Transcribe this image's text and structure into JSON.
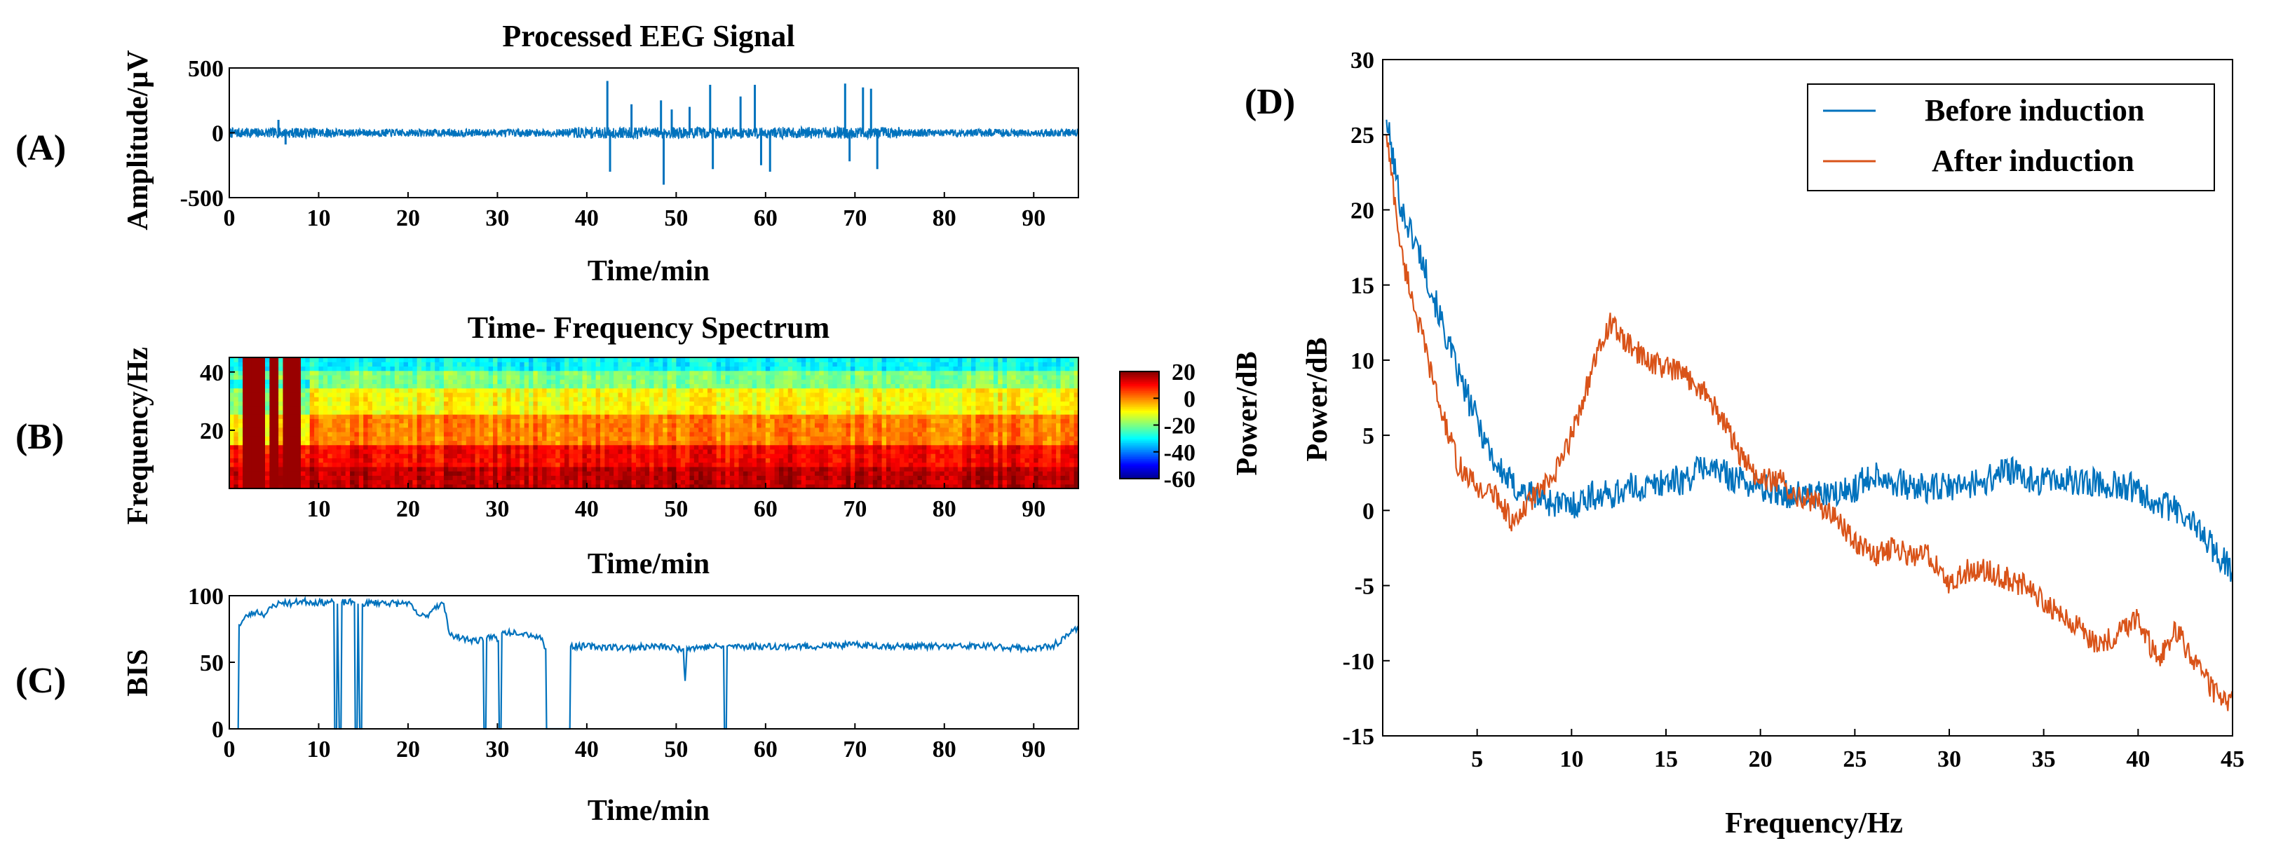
{
  "chart_data": [
    {
      "id": "A",
      "type": "line",
      "panel_label": "(A)",
      "title": "Processed EEG Signal",
      "xlabel": "Time/min",
      "ylabel": "Amplitude/μV",
      "xlim": [
        0,
        95
      ],
      "ylim": [
        -500,
        500
      ],
      "xticks": [
        "0",
        "10",
        "20",
        "30",
        "40",
        "50",
        "60",
        "70",
        "80",
        "90"
      ],
      "yticks": [
        "500",
        "0",
        "-500"
      ],
      "color": "#0072BD",
      "baseline_amplitude_uv": 30,
      "spikes": [
        {
          "x": 5.5,
          "y": 100
        },
        {
          "x": 6.3,
          "y": -90
        },
        {
          "x": 42.3,
          "y": 400
        },
        {
          "x": 42.6,
          "y": -300
        },
        {
          "x": 45.0,
          "y": 220
        },
        {
          "x": 48.3,
          "y": 250
        },
        {
          "x": 48.6,
          "y": -400
        },
        {
          "x": 49.5,
          "y": 180
        },
        {
          "x": 51.5,
          "y": 200
        },
        {
          "x": 53.8,
          "y": 370
        },
        {
          "x": 54.1,
          "y": -280
        },
        {
          "x": 57.2,
          "y": 280
        },
        {
          "x": 58.8,
          "y": 370
        },
        {
          "x": 59.5,
          "y": -250
        },
        {
          "x": 60.5,
          "y": -300
        },
        {
          "x": 68.9,
          "y": 380
        },
        {
          "x": 69.4,
          "y": -220
        },
        {
          "x": 70.9,
          "y": 350
        },
        {
          "x": 71.8,
          "y": 340
        },
        {
          "x": 72.5,
          "y": -280
        }
      ]
    },
    {
      "id": "B",
      "type": "heatmap",
      "panel_label": "(B)",
      "title": "Time- Frequency Spectrum",
      "xlabel": "Time/min",
      "ylabel": "Frequency/Hz",
      "xlim": [
        0,
        95
      ],
      "ylim": [
        0,
        45
      ],
      "xticks": [
        "10",
        "20",
        "30",
        "40",
        "50",
        "60",
        "70",
        "80",
        "90"
      ],
      "yticks": [
        "40",
        "20"
      ],
      "colorbar": {
        "label": "Power/dB",
        "range": [
          -60,
          20
        ],
        "ticks": [
          "20",
          "0",
          "-20",
          "-40",
          "-60"
        ]
      },
      "colormap": [
        "#00008F",
        "#0000FF",
        "#0080FF",
        "#00FFFF",
        "#80FF80",
        "#FFFF00",
        "#FF8000",
        "#FF0000",
        "#800000"
      ],
      "power_bands_db": [
        {
          "freq_range_hz": [
            0,
            8
          ],
          "value_db": 15
        },
        {
          "freq_range_hz": [
            8,
            15
          ],
          "value_db": 10
        },
        {
          "freq_range_hz": [
            15,
            25
          ],
          "value_db": 0
        },
        {
          "freq_range_hz": [
            25,
            35
          ],
          "value_db": -10
        },
        {
          "freq_range_hz": [
            35,
            40
          ],
          "value_db": -20
        },
        {
          "freq_range_hz": [
            40,
            45
          ],
          "value_db": -30
        }
      ],
      "artifact_times_min": [
        2,
        3,
        3.5,
        5,
        6.5,
        7.5
      ]
    },
    {
      "id": "C",
      "type": "line",
      "panel_label": "(C)",
      "title": "",
      "xlabel": "Time/min",
      "ylabel": "BIS",
      "xlim": [
        0,
        95
      ],
      "ylim": [
        0,
        100
      ],
      "xticks": [
        "0",
        "10",
        "20",
        "30",
        "40",
        "50",
        "60",
        "70",
        "80",
        "90"
      ],
      "yticks": [
        "100",
        "50",
        "0"
      ],
      "color": "#0072BD",
      "points": [
        [
          1.0,
          0
        ],
        [
          1.1,
          78
        ],
        [
          2,
          85
        ],
        [
          3,
          88
        ],
        [
          4,
          86
        ],
        [
          5,
          93
        ],
        [
          6,
          95
        ],
        [
          7,
          94
        ],
        [
          8,
          96
        ],
        [
          10,
          95
        ],
        [
          11.7,
          95
        ],
        [
          11.8,
          0
        ],
        [
          12.0,
          0
        ],
        [
          12.1,
          94
        ],
        [
          12.3,
          0
        ],
        [
          12.5,
          0
        ],
        [
          12.6,
          95
        ],
        [
          14.0,
          95
        ],
        [
          14.1,
          0
        ],
        [
          14.3,
          0
        ],
        [
          14.4,
          94
        ],
        [
          14.6,
          0
        ],
        [
          14.8,
          0
        ],
        [
          14.9,
          94
        ],
        [
          17,
          95
        ],
        [
          19,
          94
        ],
        [
          20,
          95
        ],
        [
          21,
          86
        ],
        [
          22,
          84
        ],
        [
          23,
          92
        ],
        [
          24,
          94
        ],
        [
          24.5,
          75
        ],
        [
          25,
          70
        ],
        [
          26,
          68
        ],
        [
          27,
          67
        ],
        [
          28.4,
          66
        ],
        [
          28.5,
          0
        ],
        [
          28.7,
          0
        ],
        [
          28.8,
          68
        ],
        [
          29.5,
          70
        ],
        [
          30.1,
          66
        ],
        [
          30.2,
          0
        ],
        [
          30.4,
          0
        ],
        [
          30.5,
          72
        ],
        [
          32,
          73
        ],
        [
          33,
          72
        ],
        [
          34,
          70
        ],
        [
          35,
          68
        ],
        [
          35.4,
          60
        ],
        [
          35.5,
          0
        ],
        [
          38.1,
          0
        ],
        [
          38.2,
          62
        ],
        [
          40,
          62
        ],
        [
          45,
          61
        ],
        [
          48,
          62
        ],
        [
          50.8,
          60
        ],
        [
          51.0,
          36
        ],
        [
          51.2,
          61
        ],
        [
          55.3,
          62
        ],
        [
          55.4,
          0
        ],
        [
          55.6,
          0
        ],
        [
          55.7,
          62
        ],
        [
          60,
          62
        ],
        [
          65,
          62
        ],
        [
          70,
          63
        ],
        [
          75,
          62
        ],
        [
          80,
          62
        ],
        [
          85,
          62
        ],
        [
          88,
          61
        ],
        [
          90,
          60
        ],
        [
          92,
          62
        ],
        [
          93.5,
          68
        ],
        [
          94.5,
          75
        ],
        [
          95,
          74
        ]
      ],
      "noise_amplitude": 2.5
    },
    {
      "id": "D",
      "type": "line",
      "panel_label": "(D)",
      "title": "",
      "xlabel": "Frequency/Hz",
      "ylabel": "Power/dB",
      "xlim": [
        0,
        45
      ],
      "ylim": [
        -15,
        30
      ],
      "xticks": [
        "5",
        "10",
        "15",
        "20",
        "25",
        "30",
        "35",
        "40",
        "45"
      ],
      "yticks": [
        "30",
        "25",
        "20",
        "15",
        "10",
        "5",
        "0",
        "-5",
        "-10",
        "-15"
      ],
      "legend": {
        "position": "top-right"
      },
      "series": [
        {
          "name": "Before induction",
          "color": "#0072BD",
          "noise_amplitude": 1.0,
          "points": [
            [
              0.2,
              26
            ],
            [
              1,
              20
            ],
            [
              2,
              17
            ],
            [
              3,
              13
            ],
            [
              4,
              9
            ],
            [
              5,
              6
            ],
            [
              6,
              3
            ],
            [
              7,
              1.5
            ],
            [
              8,
              1
            ],
            [
              9,
              0.5
            ],
            [
              10,
              0.3
            ],
            [
              11,
              1
            ],
            [
              12,
              1
            ],
            [
              13,
              1.5
            ],
            [
              14,
              1.5
            ],
            [
              15,
              2
            ],
            [
              16,
              2
            ],
            [
              17,
              3
            ],
            [
              18,
              2.5
            ],
            [
              19,
              2
            ],
            [
              20,
              1.5
            ],
            [
              22,
              1
            ],
            [
              24,
              1
            ],
            [
              25,
              1.5
            ],
            [
              26,
              2.5
            ],
            [
              28,
              1.5
            ],
            [
              30,
              1.5
            ],
            [
              32,
              2
            ],
            [
              33,
              2.8
            ],
            [
              34,
              2
            ],
            [
              36,
              2
            ],
            [
              38,
              1.8
            ],
            [
              40,
              1.5
            ],
            [
              41,
              0.5
            ],
            [
              42,
              0
            ],
            [
              43,
              -1
            ],
            [
              44,
              -2.5
            ],
            [
              45,
              -4
            ]
          ]
        },
        {
          "name": "After induction",
          "color": "#D95319",
          "noise_amplitude": 0.8,
          "points": [
            [
              0.2,
              25
            ],
            [
              1,
              17
            ],
            [
              2,
              12
            ],
            [
              3,
              7
            ],
            [
              4,
              3
            ],
            [
              5,
              1.5
            ],
            [
              6,
              1
            ],
            [
              7,
              -1
            ],
            [
              8,
              1
            ],
            [
              9,
              2
            ],
            [
              10,
              5
            ],
            [
              11,
              9
            ],
            [
              12,
              12.5
            ],
            [
              13,
              11
            ],
            [
              14,
              10
            ],
            [
              15,
              9.5
            ],
            [
              16,
              9
            ],
            [
              17,
              8
            ],
            [
              18,
              6
            ],
            [
              19,
              3.5
            ],
            [
              20,
              2
            ],
            [
              21,
              2
            ],
            [
              22,
              1
            ],
            [
              23,
              0.5
            ],
            [
              24,
              -0.5
            ],
            [
              25,
              -2
            ],
            [
              26,
              -3
            ],
            [
              27,
              -2.5
            ],
            [
              28,
              -3
            ],
            [
              29,
              -3
            ],
            [
              30,
              -5
            ],
            [
              31,
              -4
            ],
            [
              32,
              -4
            ],
            [
              33,
              -4.5
            ],
            [
              34,
              -5
            ],
            [
              35,
              -6
            ],
            [
              36,
              -7
            ],
            [
              37,
              -8
            ],
            [
              38,
              -9
            ],
            [
              39,
              -8
            ],
            [
              40,
              -7
            ],
            [
              41,
              -10
            ],
            [
              42,
              -8
            ],
            [
              43,
              -10
            ],
            [
              44,
              -12
            ],
            [
              45,
              -13
            ]
          ]
        }
      ]
    }
  ]
}
